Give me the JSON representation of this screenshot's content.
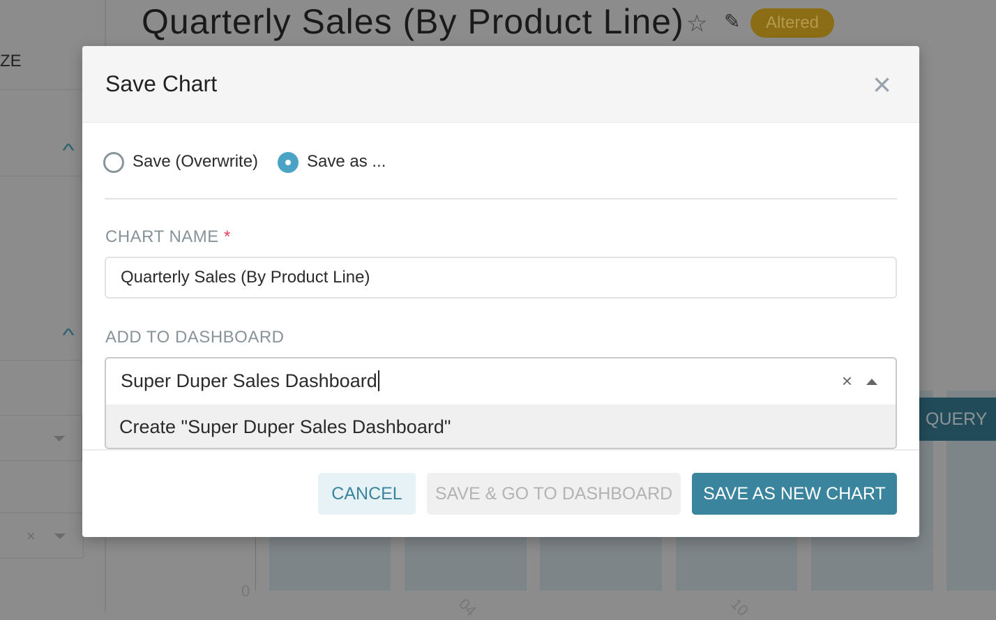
{
  "background": {
    "page_title": "Quarterly Sales (By Product Line)",
    "status_badge": "Altered",
    "sidebar_partial_label": "ZE",
    "run_query_partial": "QUERY",
    "y_axis_tick": "0",
    "x_axis_ticks": [
      "04",
      "10"
    ],
    "colors": {
      "accent": "#3b849e",
      "badge": "#8a6d14"
    }
  },
  "modal": {
    "title": "Save Chart",
    "radio_options": [
      {
        "label": "Save (Overwrite)",
        "selected": false
      },
      {
        "label": "Save as ...",
        "selected": true
      }
    ],
    "chart_name": {
      "label": "CHART NAME",
      "required_marker": "*",
      "value": "Quarterly Sales (By Product Line)"
    },
    "dashboard": {
      "label": "ADD TO DASHBOARD",
      "value": "Super Duper Sales Dashboard",
      "option": "Create \"Super Duper Sales Dashboard\""
    },
    "buttons": {
      "cancel": "CANCEL",
      "save_go": "SAVE & GO TO DASHBOARD",
      "save_new": "SAVE AS NEW CHART"
    }
  }
}
